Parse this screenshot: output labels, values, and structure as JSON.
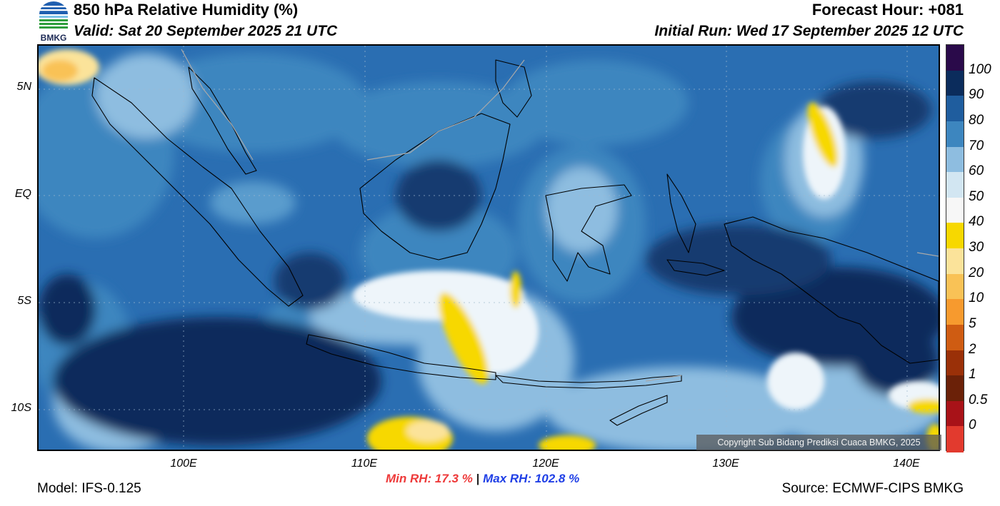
{
  "header": {
    "title": "850 hPa Relative Humidity (%)",
    "valid_time": "Valid: Sat 20 September 2025 21 UTC",
    "forecast_hour": "Forecast Hour: +081",
    "initial_run": "Initial Run: Wed 17 September 2025 12 UTC"
  },
  "logo": {
    "text": "BMKG",
    "icon": "bmkg-logo-icon"
  },
  "map": {
    "latitude_labels": [
      "5N",
      "EQ",
      "5S",
      "10S"
    ],
    "longitude_labels": [
      "100E",
      "110E",
      "120E",
      "130E",
      "140E"
    ],
    "copyright": "Copyright Sub Bidang Prediksi Cuaca BMKG, 2025"
  },
  "colorbar": {
    "labels": [
      "100",
      "90",
      "80",
      "70",
      "60",
      "50",
      "40",
      "30",
      "20",
      "10",
      "5",
      "2",
      "1",
      "0.5",
      "0"
    ],
    "colors": [
      "#2a0a4a",
      "#0b2c5c",
      "#1f5d9e",
      "#3d86bf",
      "#8ebde0",
      "#d2e6f2",
      "#f7f7f7",
      "#f7d800",
      "#fbe39a",
      "#f9c256",
      "#f79a2e",
      "#cf5c12",
      "#9a3008",
      "#6b2108",
      "#a81218",
      "#e23a2e"
    ]
  },
  "stats": {
    "min_label": "Min RH:  17.3 %",
    "separator": "|",
    "max_label": "Max RH: 102.8 %",
    "min_color": "#ee3a3a",
    "max_color": "#1f3fe6"
  },
  "footer": {
    "model": "Model: IFS-0.125",
    "source": "Source: ECMWF-CIPS BMKG"
  }
}
